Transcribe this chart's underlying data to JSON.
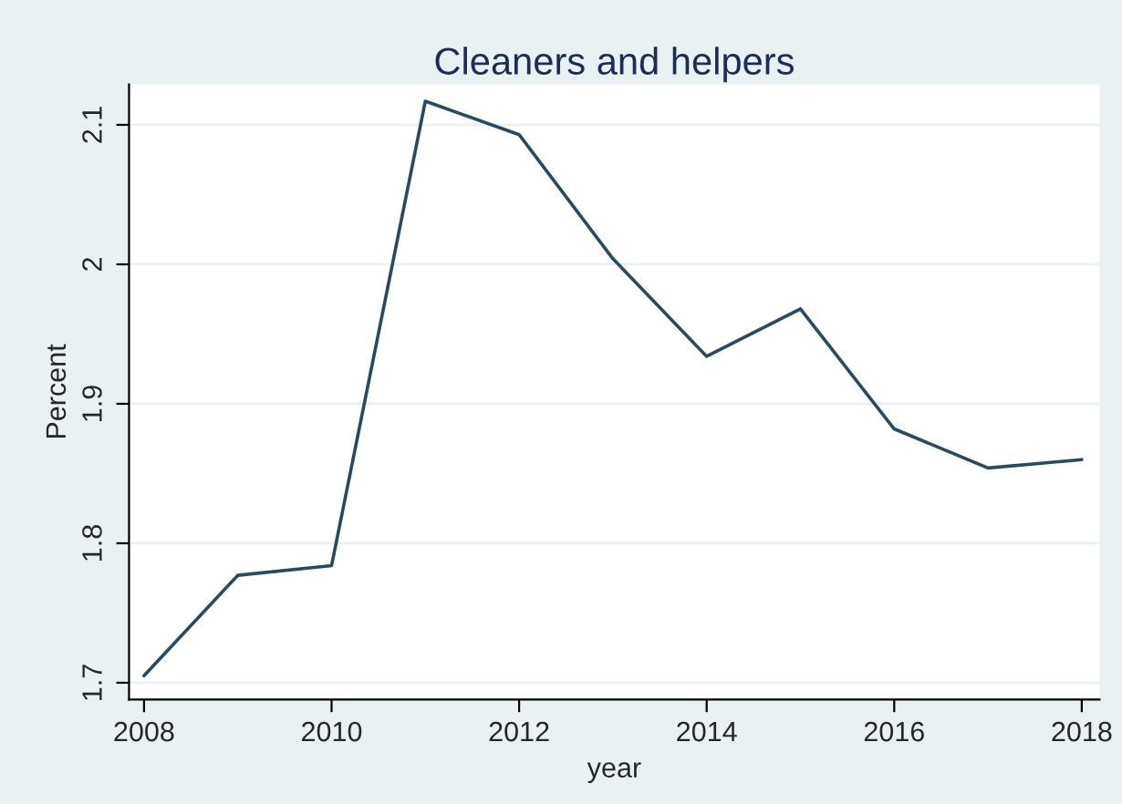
{
  "chart_data": {
    "type": "line",
    "title": "Cleaners and helpers",
    "xlabel": "year",
    "ylabel": "Percent",
    "x": [
      2008,
      2009,
      2010,
      2011,
      2012,
      2013,
      2014,
      2015,
      2016,
      2017,
      2018
    ],
    "series": [
      {
        "color": "#2c4a5e",
        "values": [
          1.705,
          1.777,
          1.784,
          2.117,
          2.093,
          2.004,
          1.934,
          1.968,
          1.882,
          1.854,
          1.86
        ]
      }
    ],
    "xlim": [
      2007.84,
      2018.19
    ],
    "xticks": [
      2008,
      2010,
      2012,
      2014,
      2016,
      2018
    ],
    "ylim": [
      1.688,
      2.129
    ],
    "yticks": [
      1.7,
      1.8,
      1.9,
      2,
      2.1
    ],
    "grid": "y",
    "marker": "none",
    "line_style": "solid"
  }
}
